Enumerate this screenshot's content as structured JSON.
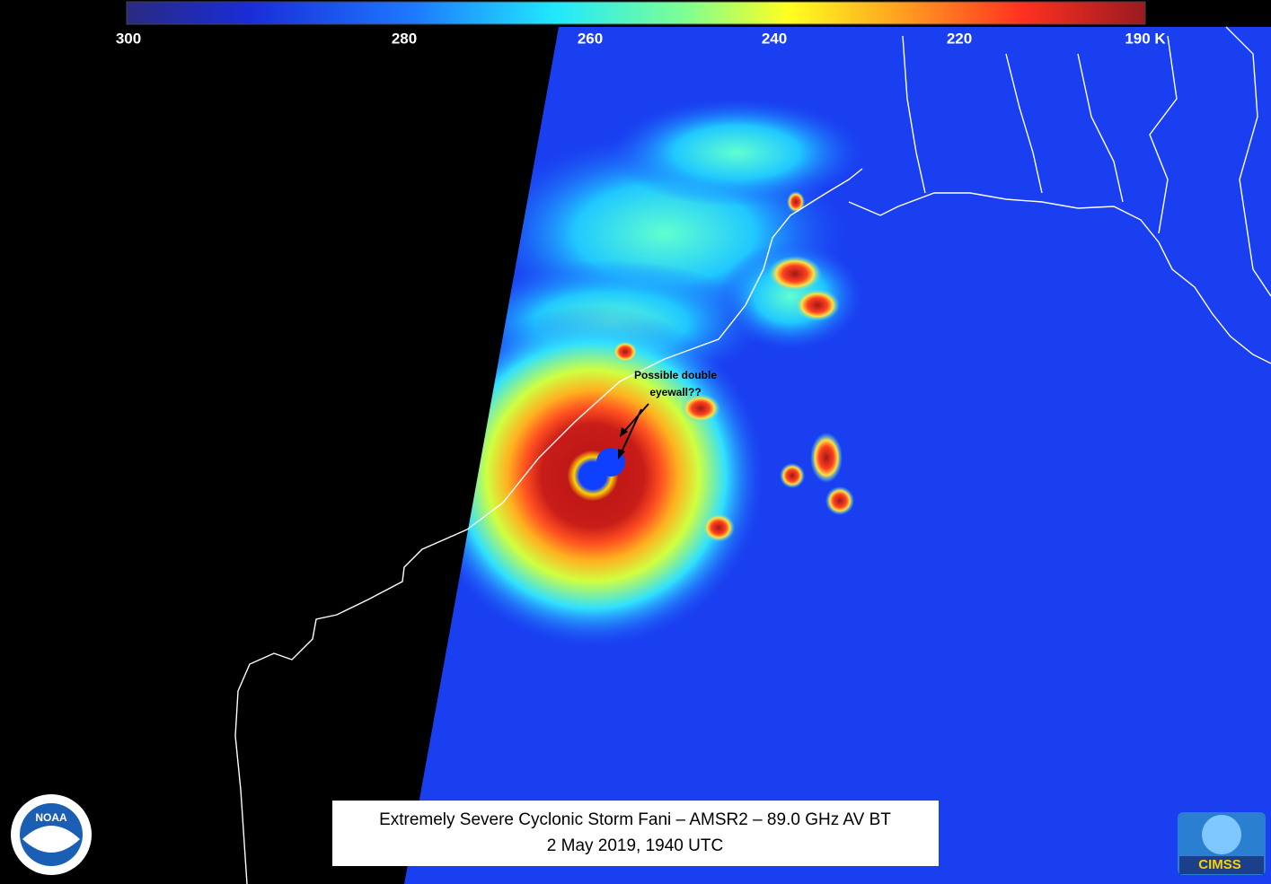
{
  "colorbar": {
    "labels": [
      "300",
      "280",
      "260",
      "240",
      "220",
      "190 K"
    ]
  },
  "annotation": {
    "lines": [
      "Possible double",
      "eyewall??"
    ]
  },
  "caption": {
    "lines": [
      "Extremely Severe Cyclonic Storm Fani – AMSR2 – 89.0 GHz AV BT",
      "2 May 2019, 1940 UTC"
    ]
  },
  "logos": {
    "left": "NOAA",
    "right": "CIMSS"
  }
}
